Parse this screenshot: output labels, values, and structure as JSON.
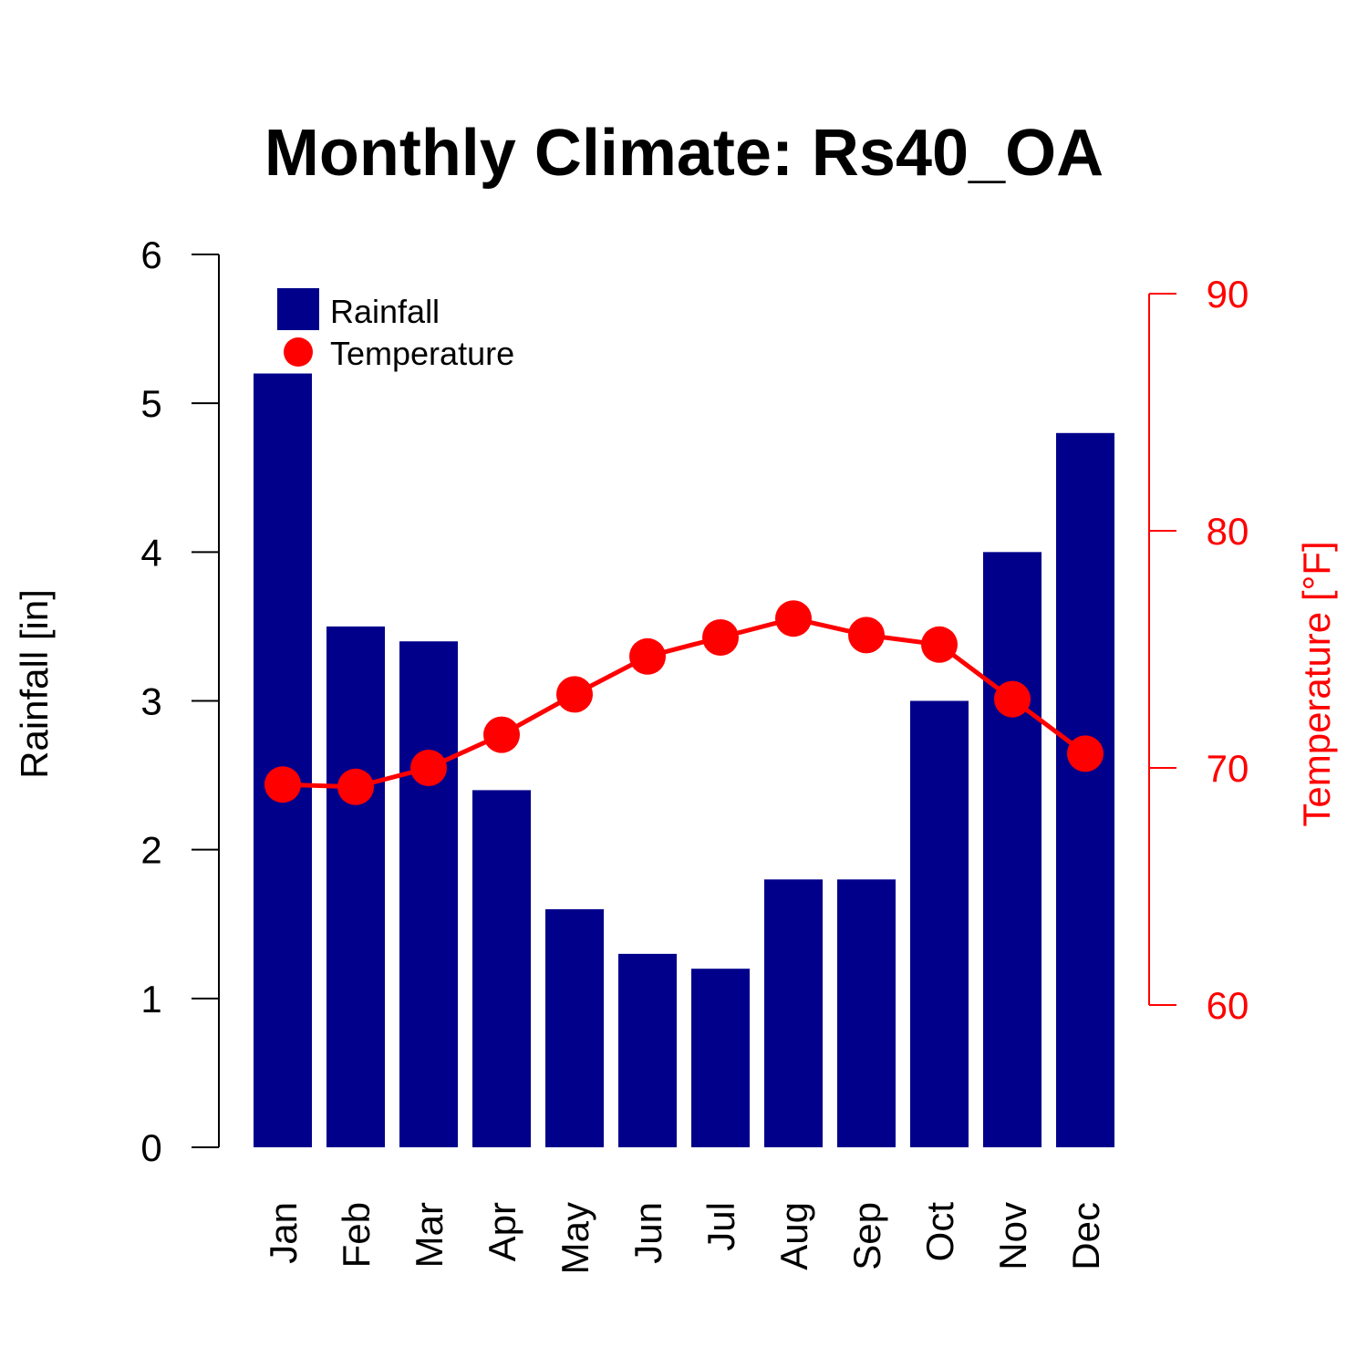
{
  "chart_data": {
    "type": "bar",
    "title": "Monthly Climate: Rs40_OA",
    "categories": [
      "Jan",
      "Feb",
      "Mar",
      "Apr",
      "May",
      "Jun",
      "Jul",
      "Aug",
      "Sep",
      "Oct",
      "Nov",
      "Dec"
    ],
    "series": [
      {
        "name": "Rainfall",
        "type": "bar",
        "axis": "left",
        "color": "#00008B",
        "values": [
          5.2,
          3.5,
          3.4,
          2.4,
          1.6,
          1.3,
          1.2,
          1.8,
          1.8,
          3.0,
          4.0,
          4.8
        ]
      },
      {
        "name": "Temperature",
        "type": "line",
        "axis": "right",
        "color": "#FF0000",
        "values": [
          69.3,
          69.2,
          70.0,
          71.4,
          73.1,
          74.7,
          75.5,
          76.3,
          75.6,
          75.2,
          72.9,
          70.6
        ]
      }
    ],
    "y_left": {
      "label": "Rainfall [in]",
      "ticks": [
        0,
        1,
        2,
        3,
        4,
        5,
        6
      ],
      "range": [
        0,
        6
      ]
    },
    "y_right": {
      "label": "Temperature [°F]",
      "ticks": [
        60,
        70,
        80,
        90
      ],
      "range": [
        60,
        90
      ],
      "color": "#FF0000"
    },
    "legend": {
      "position": "top-left"
    },
    "grid": false
  }
}
